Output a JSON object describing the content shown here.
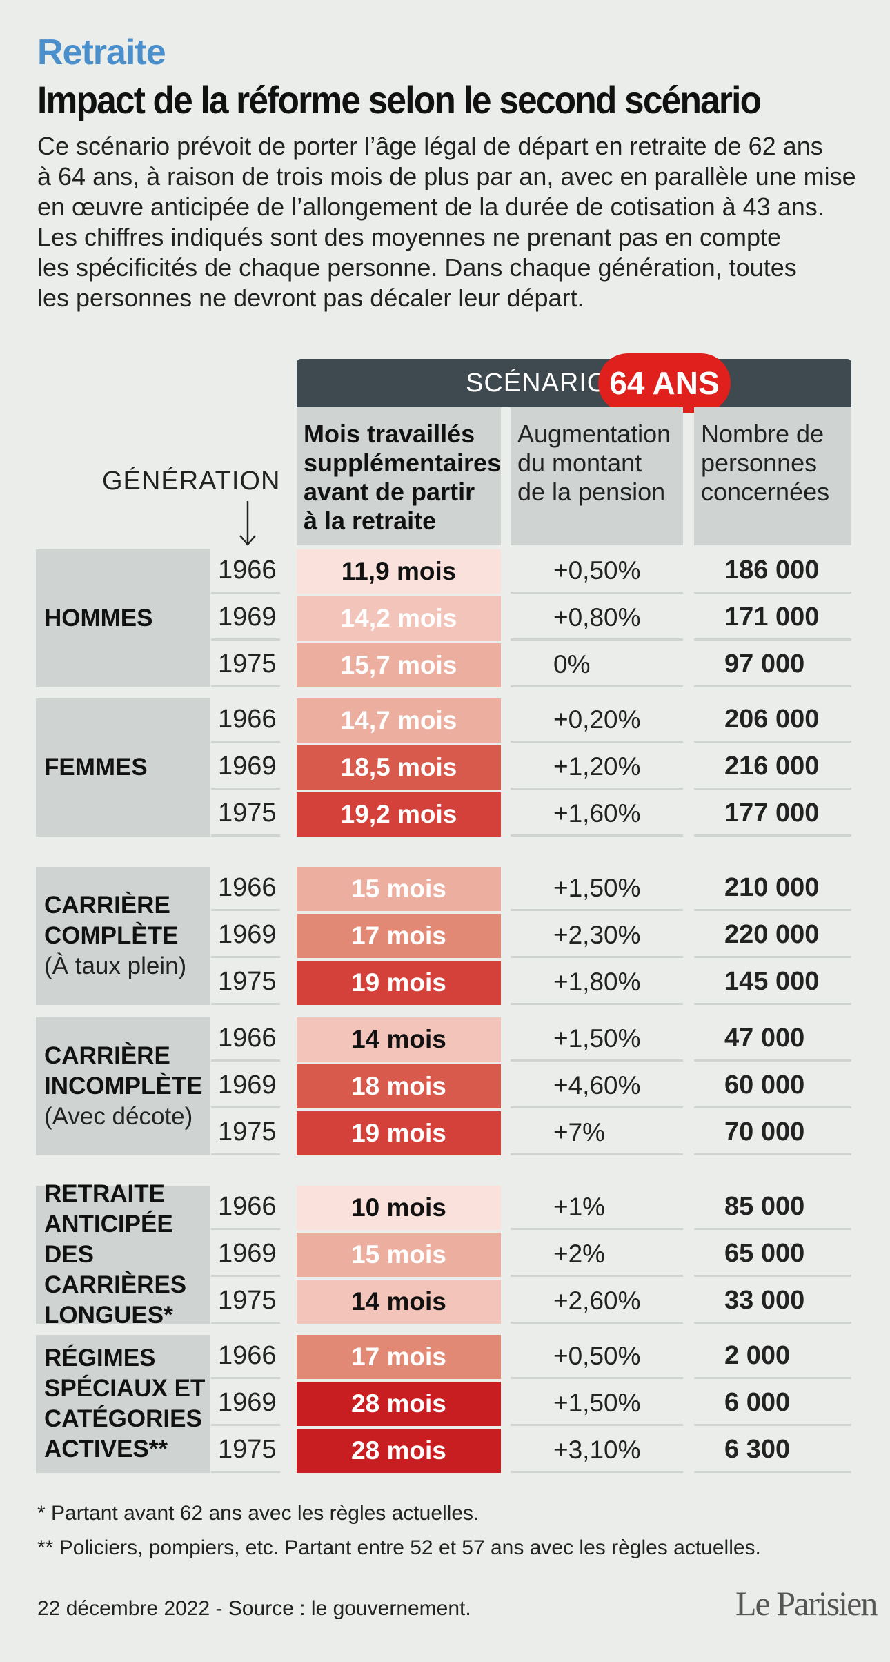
{
  "kicker": "Retraite",
  "title": "Impact de la réforme selon le second scénario",
  "intro_lines": [
    "Ce scénario prévoit de porter l’âge légal de départ en retraite de 62 ans",
    "à 64 ans, à raison de trois mois de plus par an, avec en parallèle une mise",
    "en œuvre anticipée de l’allongement de la durée de cotisation à 43 ans.",
    "Les chiffres indiqués sont des moyennes ne prenant pas en compte",
    "les spécificités de chaque personne. Dans chaque génération, toutes",
    "les personnes ne devront pas décaler leur départ."
  ],
  "scenario": {
    "label": "SCÉNARIO",
    "badge": "64 ANS",
    "badge_color": "#e0201c",
    "bar_color": "#3f4a50"
  },
  "generation_label": "GÉNÉRATION",
  "columns": {
    "months": "Mois travaillés supplémentaires avant de partir à la retraite",
    "pension": "Augmentation du montant de la pension",
    "people": "Nombre de personnes concernées"
  },
  "heat_colors": {
    "lightest": "#fbe1db",
    "light": "#f3c5ba",
    "mid_light": "#ecae9e",
    "mid": "#e28976",
    "strong": "#d75a4c",
    "stronger": "#d4403a",
    "strongest": "#c81e22"
  },
  "groups": [
    {
      "name": "HOMMES",
      "sub": "",
      "rows": [
        {
          "year": "1966",
          "months": "11,9 mois",
          "heat": "lightest",
          "pension": "+0,50%",
          "people": "186 000"
        },
        {
          "year": "1969",
          "months": "14,2 mois",
          "heat": "light",
          "pension": "+0,80%",
          "people": "171 000"
        },
        {
          "year": "1975",
          "months": "15,7 mois",
          "heat": "mid_light",
          "pension": "0%",
          "people": "97 000"
        }
      ]
    },
    {
      "name": "FEMMES",
      "sub": "",
      "rows": [
        {
          "year": "1966",
          "months": "14,7 mois",
          "heat": "mid_light",
          "pension": "+0,20%",
          "people": "206 000"
        },
        {
          "year": "1969",
          "months": "18,5 mois",
          "heat": "strong",
          "pension": "+1,20%",
          "people": "216 000"
        },
        {
          "year": "1975",
          "months": "19,2 mois",
          "heat": "stronger",
          "pension": "+1,60%",
          "people": "177 000"
        }
      ]
    },
    {
      "name": "CARRIÈRE\nCOMPLÈTE",
      "sub": "(À taux plein)",
      "rows": [
        {
          "year": "1966",
          "months": "15 mois",
          "heat": "mid_light",
          "pension": "+1,50%",
          "people": "210 000"
        },
        {
          "year": "1969",
          "months": "17 mois",
          "heat": "mid",
          "pension": "+2,30%",
          "people": "220 000"
        },
        {
          "year": "1975",
          "months": "19 mois",
          "heat": "stronger",
          "pension": "+1,80%",
          "people": "145 000"
        }
      ]
    },
    {
      "name": "CARRIÈRE\nINCOMPLÈTE",
      "sub": "(Avec décote)",
      "rows": [
        {
          "year": "1966",
          "months": "14 mois",
          "heat": "light",
          "pension": "+1,50%",
          "people": "47 000"
        },
        {
          "year": "1969",
          "months": "18 mois",
          "heat": "strong",
          "pension": "+4,60%",
          "people": "60 000"
        },
        {
          "year": "1975",
          "months": "19 mois",
          "heat": "stronger",
          "pension": "+7%",
          "people": "70 000"
        }
      ]
    },
    {
      "name": "RETRAITE\nANTICIPÉE DES\nCARRIÈRES\nLONGUES*",
      "sub": "",
      "rows": [
        {
          "year": "1966",
          "months": "10 mois",
          "heat": "lightest",
          "pension": "+1%",
          "people": "85 000"
        },
        {
          "year": "1969",
          "months": "15 mois",
          "heat": "mid_light",
          "pension": "+2%",
          "people": "65 000"
        },
        {
          "year": "1975",
          "months": "14 mois",
          "heat": "light",
          "pension": "+2,60%",
          "people": "33 000"
        }
      ]
    },
    {
      "name": "RÉGIMES\nSPÉCIAUX ET\nCATÉGORIES\nACTIVES**",
      "sub": "",
      "rows": [
        {
          "year": "1966",
          "months": "17 mois",
          "heat": "mid",
          "pension": "+0,50%",
          "people": "2 000"
        },
        {
          "year": "1969",
          "months": "28 mois",
          "heat": "strongest",
          "pension": "+1,50%",
          "people": "6 000"
        },
        {
          "year": "1975",
          "months": "28 mois",
          "heat": "strongest",
          "pension": "+3,10%",
          "people": "6 300"
        }
      ]
    }
  ],
  "footnotes": [
    "* Partant avant 62 ans avec les règles actuelles.",
    "** Policiers, pompiers, etc. Partant entre 52 et 57 ans avec les règles actuelles."
  ],
  "source": "22 décembre 2022 - Source : le gouvernement.",
  "logo": "Le Parisien"
}
